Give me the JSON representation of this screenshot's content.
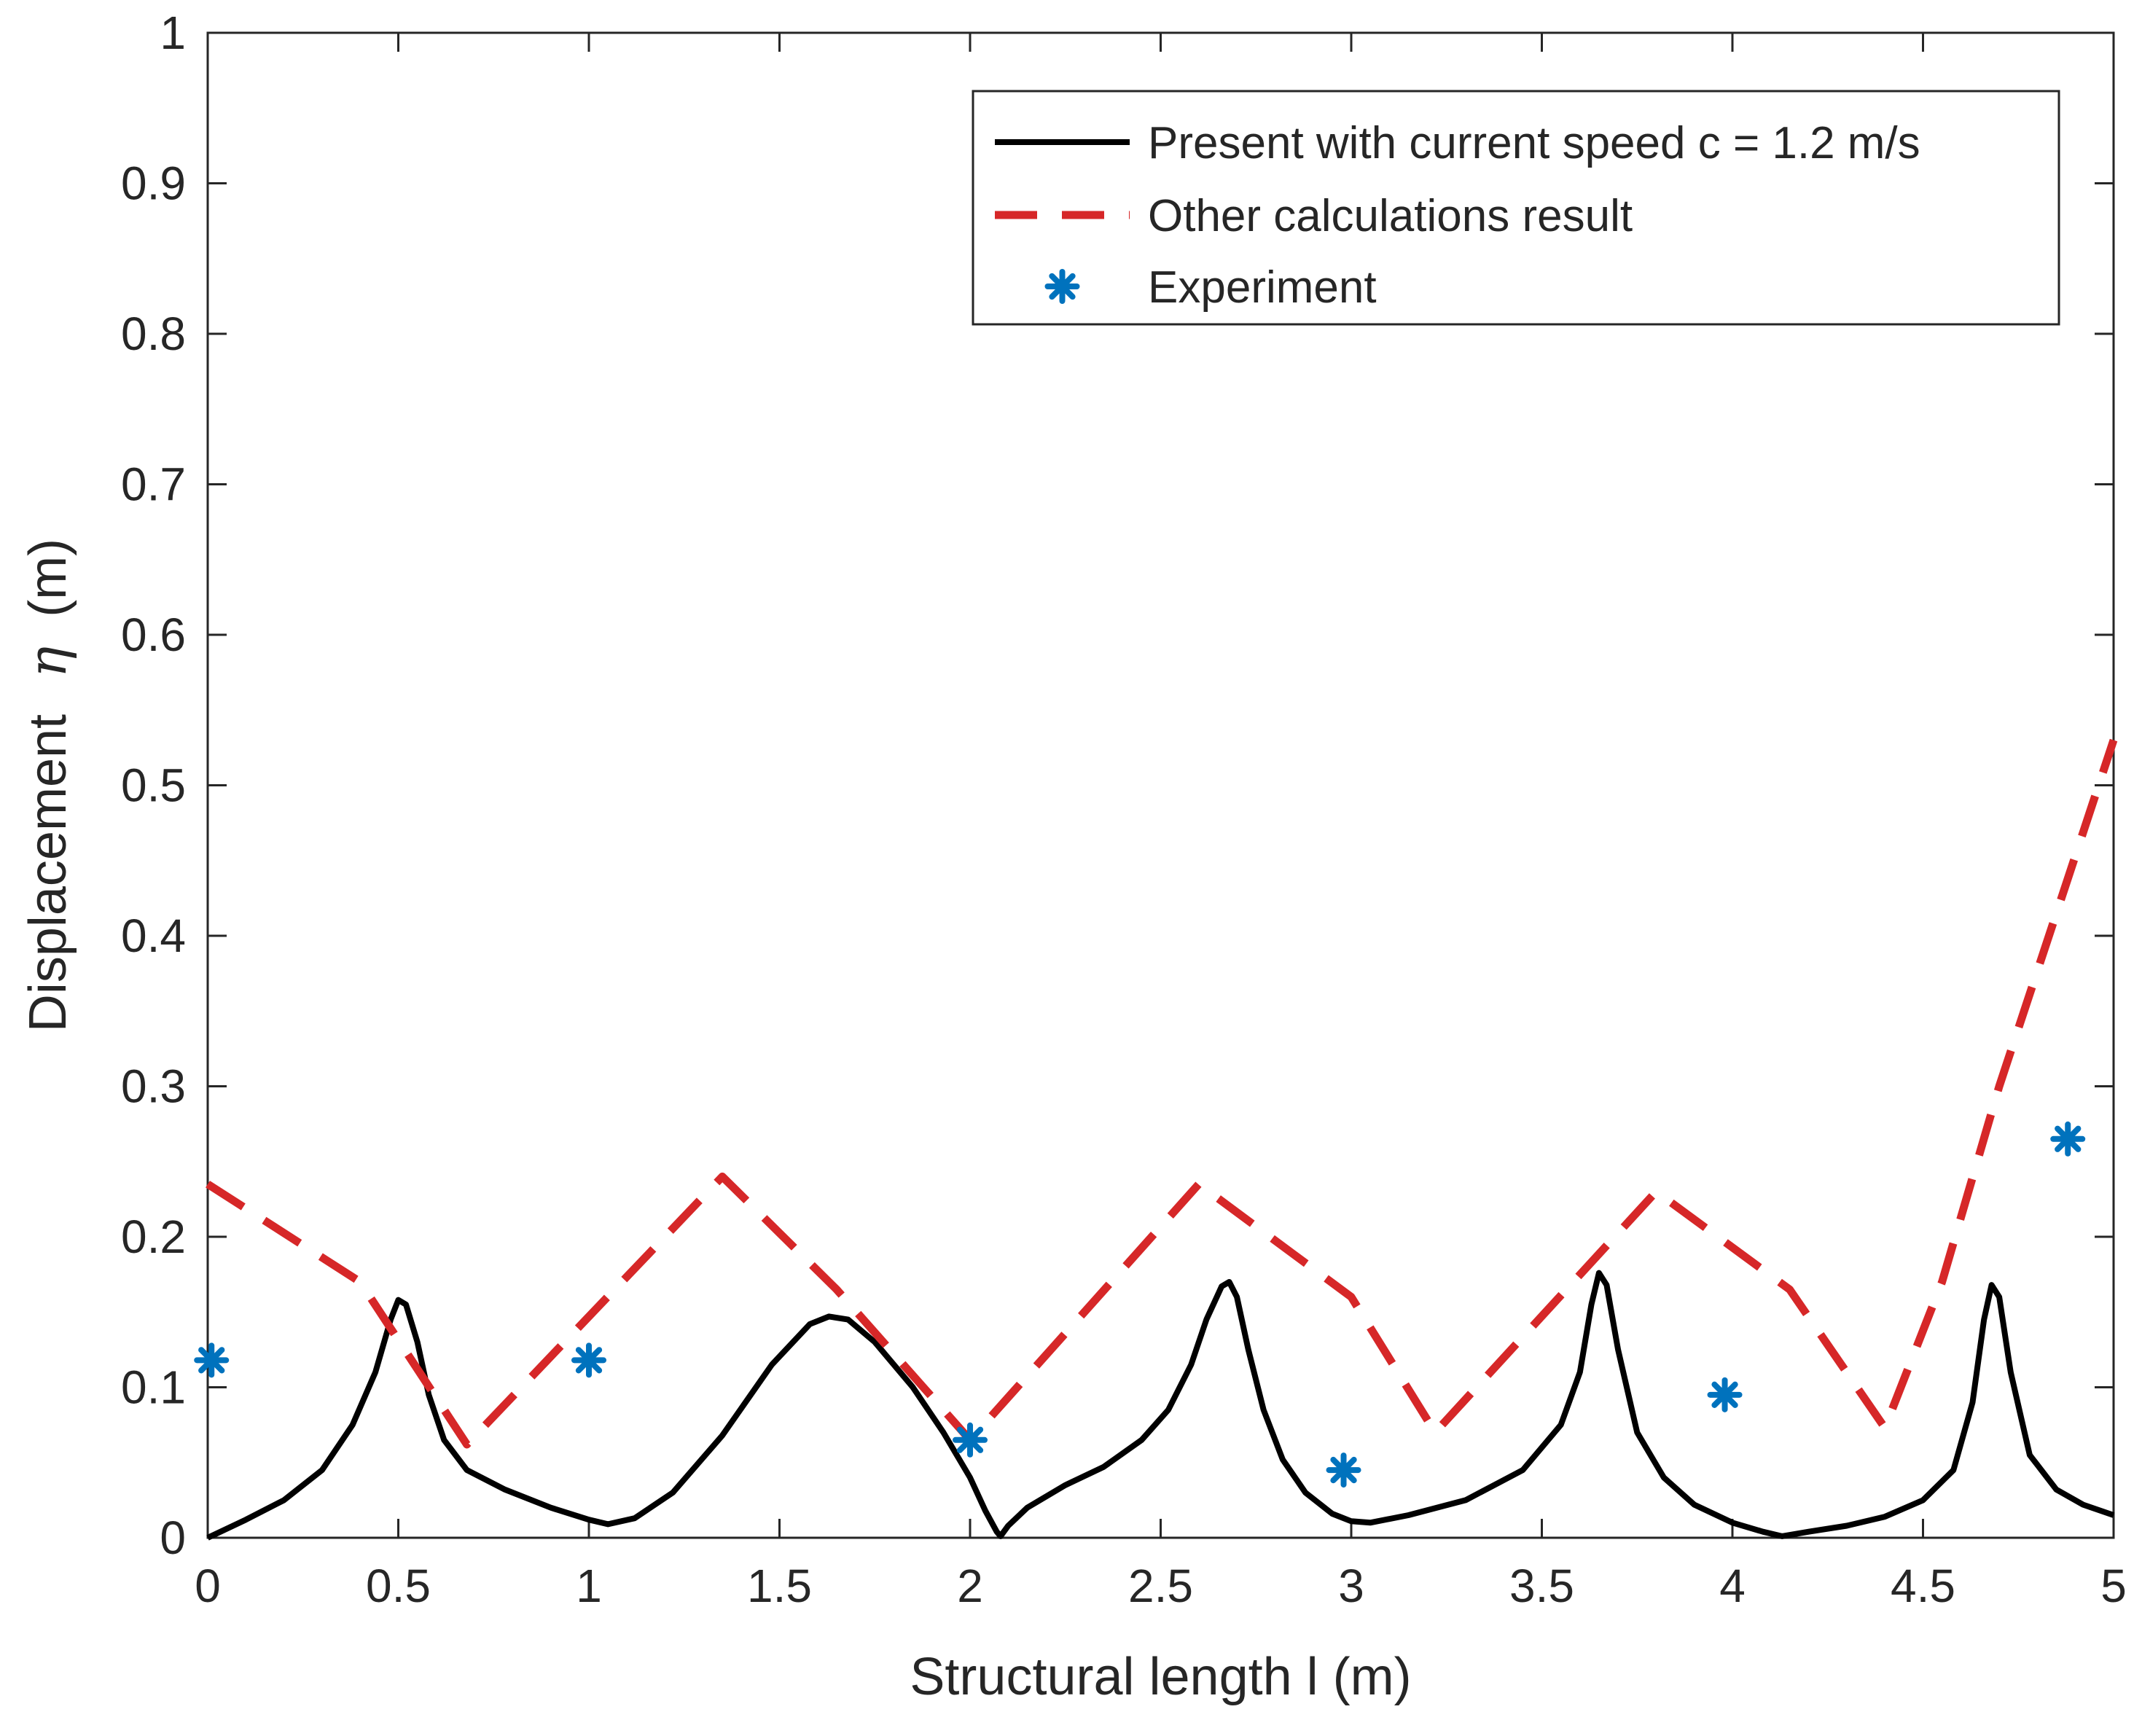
{
  "chart_data": {
    "type": "line",
    "title": "",
    "xlabel": "Structural length l (m)",
    "ylabel": {
      "prefix": "Displacement",
      "symbol": "η",
      "suffix": "(m)"
    },
    "xlim": [
      0,
      5
    ],
    "ylim": [
      0,
      1
    ],
    "grid": false,
    "legend_position": "top-right",
    "x_ticks": [
      0,
      0.5,
      1,
      1.5,
      2,
      2.5,
      3,
      3.5,
      4,
      4.5,
      5
    ],
    "x_tick_labels": [
      "0",
      "0.5",
      "1",
      "1.5",
      "2",
      "2.5",
      "3",
      "3.5",
      "4",
      "4.5",
      "5"
    ],
    "y_ticks": [
      0,
      0.1,
      0.2,
      0.3,
      0.4,
      0.5,
      0.6,
      0.7,
      0.8,
      0.9,
      1
    ],
    "y_tick_labels": [
      "0",
      "0.1",
      "0.2",
      "0.3",
      "0.4",
      "0.5",
      "0.6",
      "0.7",
      "0.8",
      "0.9",
      "1"
    ],
    "series": [
      {
        "name": "Present with current speed c = 1.2 m/s",
        "style": "solid",
        "color": "#000000",
        "x": [
          0,
          0.1,
          0.2,
          0.3,
          0.38,
          0.44,
          0.48,
          0.5,
          0.52,
          0.55,
          0.58,
          0.62,
          0.68,
          0.78,
          0.9,
          1.0,
          1.05,
          1.12,
          1.22,
          1.35,
          1.48,
          1.58,
          1.63,
          1.68,
          1.75,
          1.85,
          1.93,
          2.0,
          2.04,
          2.07,
          2.08,
          2.1,
          2.15,
          2.25,
          2.35,
          2.45,
          2.52,
          2.58,
          2.62,
          2.66,
          2.68,
          2.7,
          2.73,
          2.77,
          2.82,
          2.88,
          2.95,
          3.0,
          3.05,
          3.15,
          3.3,
          3.45,
          3.55,
          3.6,
          3.63,
          3.65,
          3.67,
          3.7,
          3.75,
          3.82,
          3.9,
          4.0,
          4.08,
          4.13,
          4.2,
          4.3,
          4.4,
          4.5,
          4.58,
          4.63,
          4.66,
          4.68,
          4.7,
          4.73,
          4.78,
          4.85,
          4.92,
          5.0
        ],
        "y": [
          0,
          0.012,
          0.025,
          0.045,
          0.075,
          0.11,
          0.145,
          0.158,
          0.155,
          0.13,
          0.095,
          0.065,
          0.045,
          0.032,
          0.02,
          0.012,
          0.009,
          0.013,
          0.03,
          0.068,
          0.115,
          0.142,
          0.147,
          0.145,
          0.13,
          0.1,
          0.07,
          0.04,
          0.018,
          0.004,
          0.001,
          0.008,
          0.02,
          0.035,
          0.047,
          0.065,
          0.085,
          0.115,
          0.145,
          0.167,
          0.17,
          0.16,
          0.125,
          0.085,
          0.052,
          0.03,
          0.016,
          0.011,
          0.01,
          0.015,
          0.025,
          0.045,
          0.075,
          0.11,
          0.155,
          0.176,
          0.168,
          0.125,
          0.07,
          0.04,
          0.022,
          0.01,
          0.004,
          0.001,
          0.004,
          0.008,
          0.014,
          0.025,
          0.045,
          0.09,
          0.145,
          0.168,
          0.16,
          0.11,
          0.055,
          0.032,
          0.022,
          0.015
        ]
      },
      {
        "name": "Other calculations result",
        "style": "dashed",
        "color": "#d62728",
        "x": [
          0,
          0.4,
          0.68,
          1.35,
          1.65,
          2.0,
          2.6,
          3.0,
          3.22,
          3.8,
          4.15,
          4.4,
          4.55,
          4.7,
          5.0
        ],
        "y": [
          0.235,
          0.17,
          0.062,
          0.24,
          0.165,
          0.065,
          0.235,
          0.16,
          0.07,
          0.23,
          0.165,
          0.073,
          0.17,
          0.3,
          0.53
        ]
      },
      {
        "name": "Experiment",
        "style": "markers",
        "marker": "asterisk",
        "color": "#0072bd",
        "x": [
          0.01,
          1.0,
          2.0,
          2.98,
          3.98,
          4.88
        ],
        "y": [
          0.118,
          0.118,
          0.065,
          0.045,
          0.095,
          0.265
        ]
      }
    ]
  }
}
